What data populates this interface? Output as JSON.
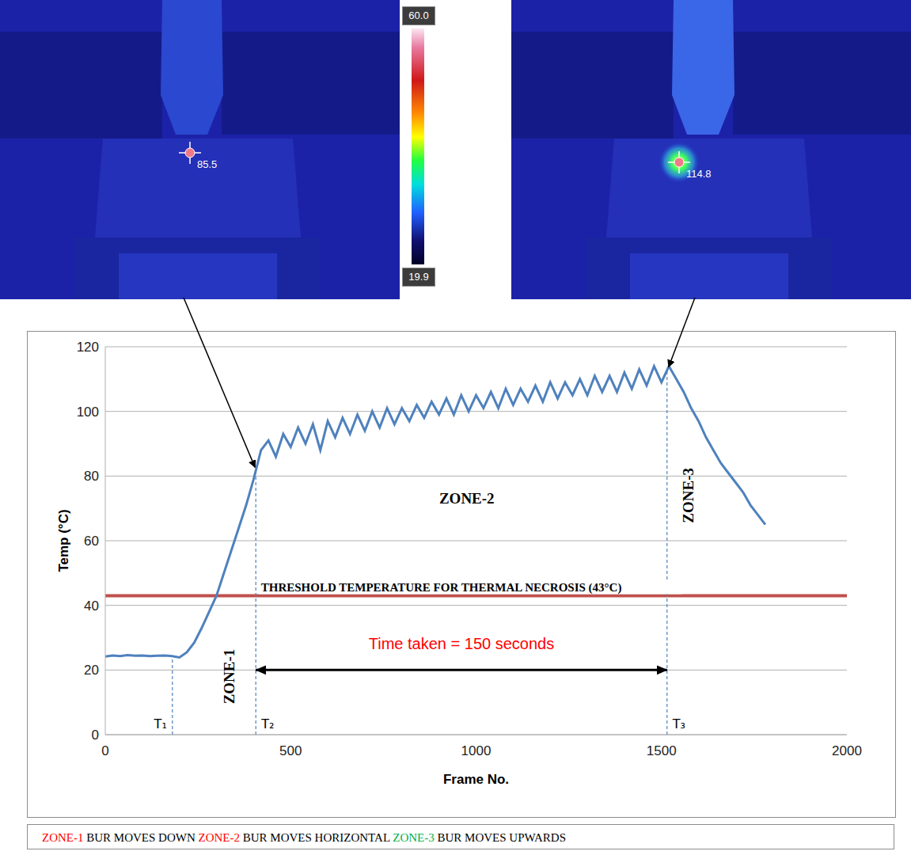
{
  "chart_data": {
    "type": "line",
    "x_label": "Frame No.",
    "y_label": "Temp (°C)",
    "x": [
      0,
      20,
      40,
      60,
      80,
      100,
      120,
      140,
      160,
      180,
      200,
      220,
      240,
      260,
      280,
      300,
      320,
      340,
      360,
      380,
      400,
      420,
      440,
      460,
      480,
      500,
      520,
      540,
      560,
      580,
      600,
      620,
      640,
      660,
      680,
      700,
      720,
      740,
      760,
      780,
      800,
      820,
      840,
      860,
      880,
      900,
      920,
      940,
      960,
      980,
      1000,
      1020,
      1040,
      1060,
      1080,
      1100,
      1120,
      1140,
      1160,
      1180,
      1200,
      1220,
      1240,
      1260,
      1280,
      1300,
      1320,
      1340,
      1360,
      1380,
      1400,
      1420,
      1440,
      1460,
      1480,
      1500,
      1520,
      1540,
      1560,
      1580,
      1600,
      1620,
      1640,
      1660,
      1680,
      1700,
      1720,
      1740,
      1760,
      1780
    ],
    "values": [
      24.2,
      24.5,
      24.3,
      24.6,
      24.4,
      24.5,
      24.3,
      24.4,
      24.5,
      24.3,
      23.9,
      25.5,
      28.5,
      33,
      38,
      43,
      50,
      57,
      64,
      71,
      79,
      88,
      91,
      86,
      93,
      89,
      95,
      90,
      96,
      88,
      97,
      92,
      98,
      93,
      99,
      94,
      100,
      95,
      101,
      96,
      101,
      97,
      102,
      98,
      103,
      99,
      104,
      99,
      105,
      100,
      105,
      101,
      106,
      101,
      107,
      102,
      107,
      103,
      108,
      103,
      109,
      104,
      109,
      105,
      110,
      105,
      111,
      106,
      111,
      106,
      112,
      107,
      113,
      108,
      114,
      109,
      114,
      110,
      106,
      101,
      97,
      92,
      88,
      84,
      81,
      78,
      75,
      71,
      68,
      65
    ],
    "color": "#4f81bd",
    "xlim": [
      0,
      2000
    ],
    "xticks": [
      0,
      500,
      1000,
      1500,
      2000
    ],
    "ylim": [
      0,
      120
    ],
    "yticks": [
      0,
      20,
      40,
      60,
      80,
      100,
      120
    ],
    "grid": true,
    "threshold": {
      "value": 43,
      "label": "THRESHOLD TEMPERATURE FOR THERMAL NECROSIS (43°C)",
      "color": "#c0504d"
    },
    "markers": [
      {
        "x": 181,
        "label": "T₁"
      },
      {
        "x": 406,
        "label": "T₂"
      },
      {
        "x": 1515,
        "label": "T₃"
      }
    ],
    "time_span": {
      "from": 406,
      "to": 1515,
      "y": 20,
      "label": "Time taken = 150 seconds",
      "color": "#ff0000"
    },
    "annotations": [
      {
        "text": "ZONE-1",
        "x": 335,
        "y": 18
      },
      {
        "text": "ZONE-2",
        "x": 975,
        "y": 73
      },
      {
        "text": "ZONE-3",
        "x": 1573,
        "y": 74
      }
    ]
  },
  "caption": [
    {
      "zone": "ZONE-1",
      "text": "BUR MOVES DOWN",
      "color": "#ff0000"
    },
    {
      "zone": "ZONE-2",
      "text": "BUR MOVES HORIZONTAL",
      "color": "#ff0000"
    },
    {
      "zone": "ZONE-3",
      "text": "BUR MOVES UPWARDS",
      "color": "#00b050"
    }
  ],
  "thermal_images": {
    "colorbar": {
      "range": [
        19.9,
        60
      ],
      "ticks": [
        19.9,
        {
          "value": 60,
          "label": "60.0"
        }
      ]
    },
    "readings": [
      {
        "value": 85.5,
        "frame": 406
      },
      {
        "value": 114.8,
        "frame": 1515
      }
    ]
  }
}
